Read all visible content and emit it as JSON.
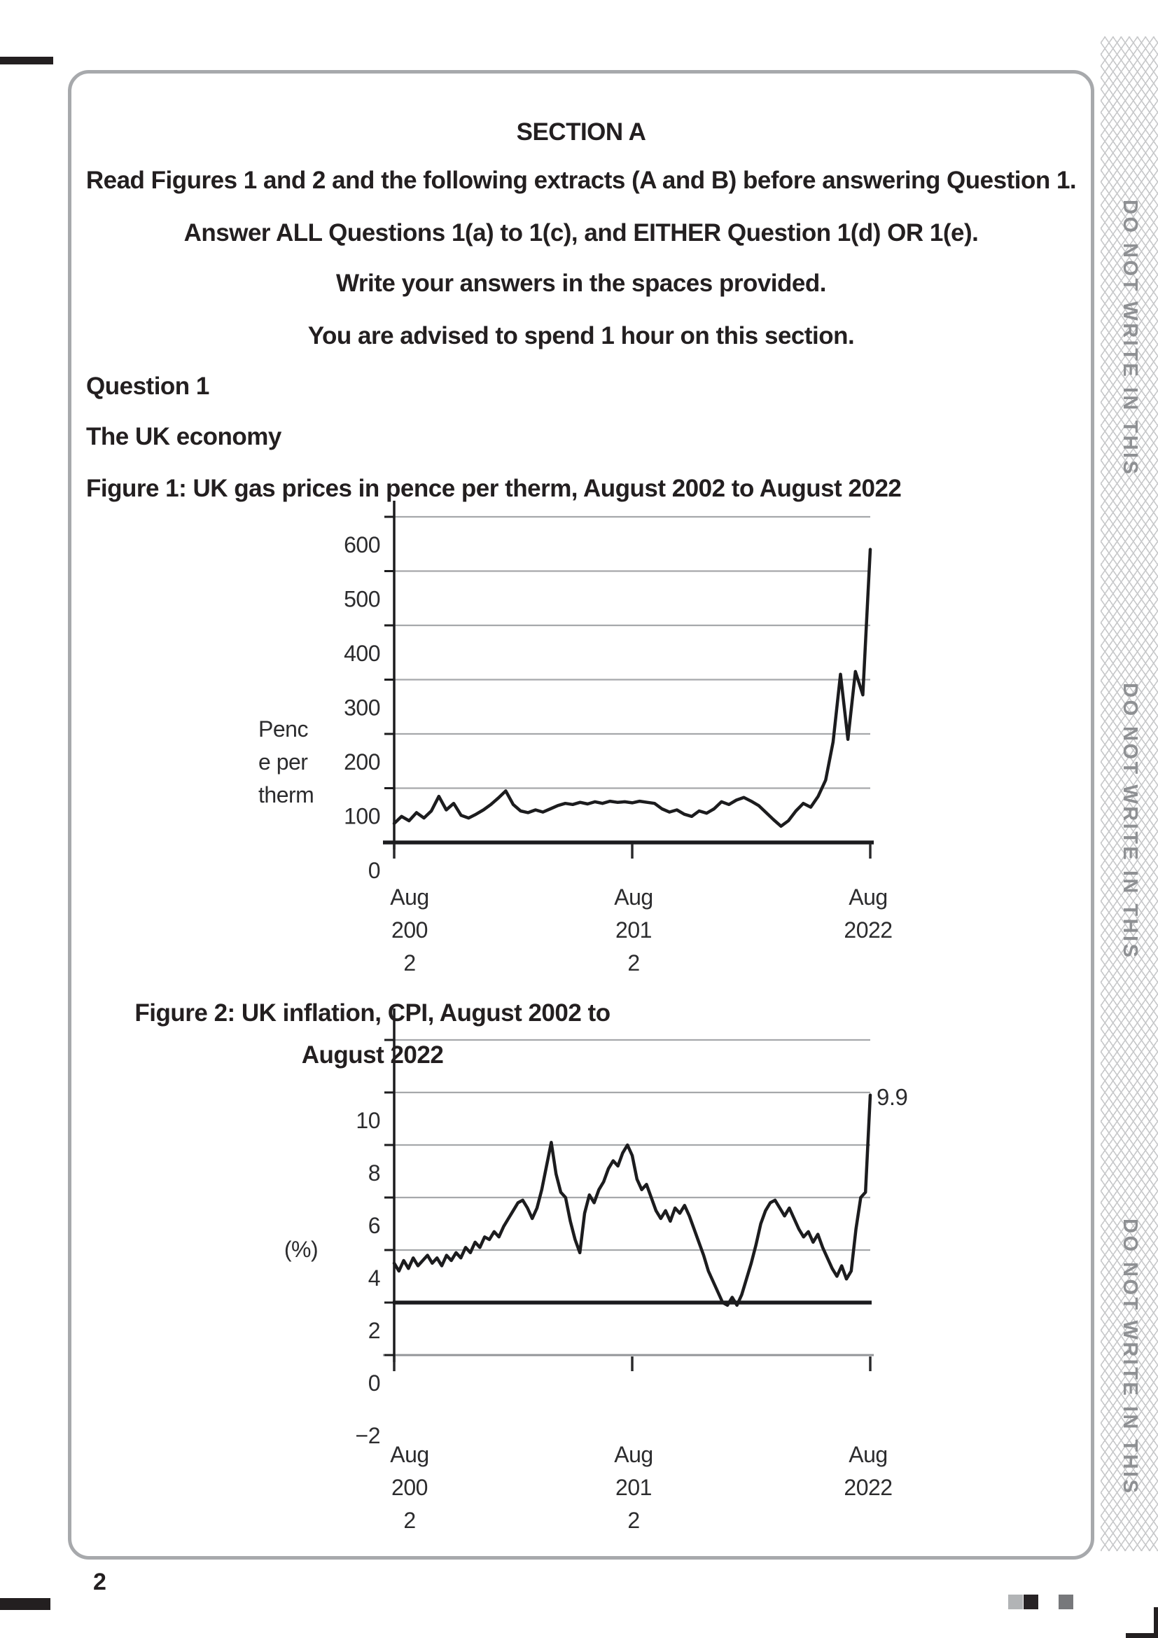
{
  "page": {
    "number": "2",
    "section_heading": "SECTION A",
    "instructions": [
      "Read Figures 1 and 2 and the following extracts (A and B) before answering Question 1.",
      "Answer ALL Questions 1(a) to 1(c), and EITHER Question 1(d) OR 1(e).",
      "Write your answers in the spaces provided.",
      "You are advised to spend 1 hour on this section."
    ],
    "question_label": "Question 1",
    "question_topic": "The UK economy",
    "margin_text": "DO NOT WRITE IN THIS"
  },
  "figure1": {
    "caption": "Figure 1: UK gas prices in pence per therm, August 2002 to August 2022"
  },
  "figure2": {
    "caption_line1": "Figure 2: UK inflation, CPI, August 2002 to",
    "caption_line2": "August 2022"
  },
  "chart_data": [
    {
      "type": "line",
      "title": "Figure 1: UK gas prices in pence per therm, August 2002 to August 2022",
      "ylabel": "Pence per therm",
      "ylabel_lines": [
        "Penc",
        "e per",
        "therm"
      ],
      "xlabel": "",
      "x_range": [
        "Aug 2002",
        "Aug 2022"
      ],
      "x_tick_positions": [
        0,
        0.5,
        1
      ],
      "x_tick_lines": [
        [
          "Aug",
          "200",
          "2"
        ],
        [
          "Aug",
          "201",
          "2"
        ],
        [
          "Aug",
          "2022"
        ]
      ],
      "y_ticks": [
        600,
        500,
        400,
        300,
        200,
        100,
        0
      ],
      "y_tick_labels": [
        "600",
        "500",
        "400",
        "300",
        "200",
        "100",
        "0"
      ],
      "gridline_values": [
        600,
        500,
        400,
        300,
        200,
        100
      ],
      "ylim": [
        0,
        650
      ],
      "grid": true,
      "legend": false,
      "series": [
        {
          "name": "UK gas price (pence per therm)",
          "values": [
            35,
            48,
            40,
            55,
            45,
            58,
            85,
            60,
            72,
            50,
            45,
            52,
            60,
            70,
            82,
            95,
            70,
            58,
            55,
            60,
            56,
            62,
            68,
            72,
            70,
            74,
            71,
            75,
            72,
            76,
            74,
            75,
            73,
            76,
            74,
            72,
            62,
            56,
            60,
            52,
            48,
            58,
            54,
            62,
            75,
            70,
            78,
            83,
            76,
            68,
            55,
            42,
            30,
            40,
            58,
            72,
            65,
            85,
            115,
            185,
            310,
            190,
            315,
            272,
            540
          ]
        }
      ]
    },
    {
      "type": "line",
      "title": "Figure 2: UK inflation, CPI, August 2002 to August 2022",
      "ylabel": "(%)",
      "ylabel_lines": [
        "(%)"
      ],
      "xlabel": "",
      "x_range": [
        "Aug 2002",
        "Aug 2022"
      ],
      "x_tick_positions": [
        0,
        0.5,
        1
      ],
      "x_tick_lines": [
        [
          "Aug",
          "200",
          "2"
        ],
        [
          "Aug",
          "201",
          "2"
        ],
        [
          "Aug",
          "2022"
        ]
      ],
      "y_ticks": [
        10,
        8,
        6,
        4,
        2,
        0,
        -2
      ],
      "y_tick_labels": [
        "10",
        "8",
        "6",
        "4",
        "2",
        "0",
        "−2"
      ],
      "gridline_values": [
        12,
        10,
        8,
        6,
        4
      ],
      "target_line_value": 2,
      "zero_axis_value": 0,
      "ylim": [
        -2.6,
        12.5
      ],
      "grid": true,
      "legend": false,
      "annotation": {
        "text": "9.9",
        "value": 9.9
      },
      "series": [
        {
          "name": "UK CPI inflation (%)",
          "values": [
            3.5,
            3.2,
            3.6,
            3.3,
            3.7,
            3.4,
            3.6,
            3.8,
            3.5,
            3.7,
            3.4,
            3.8,
            3.6,
            3.9,
            3.7,
            4.1,
            3.9,
            4.3,
            4.1,
            4.5,
            4.4,
            4.7,
            4.5,
            4.9,
            5.2,
            5.5,
            5.8,
            5.9,
            5.6,
            5.2,
            5.6,
            6.3,
            7.2,
            8.1,
            6.9,
            6.2,
            6.0,
            5.1,
            4.4,
            3.9,
            5.4,
            6.1,
            5.8,
            6.3,
            6.6,
            7.1,
            7.4,
            7.2,
            7.7,
            8.0,
            7.6,
            6.7,
            6.3,
            6.5,
            6.0,
            5.5,
            5.2,
            5.5,
            5.1,
            5.6,
            5.4,
            5.7,
            5.3,
            4.8,
            4.3,
            3.8,
            3.2,
            2.8,
            2.4,
            2.0,
            1.9,
            2.2,
            1.9,
            2.3,
            2.9,
            3.5,
            4.2,
            5.0,
            5.5,
            5.8,
            5.9,
            5.6,
            5.3,
            5.6,
            5.2,
            4.8,
            4.5,
            4.7,
            4.3,
            4.6,
            4.1,
            3.7,
            3.3,
            3.0,
            3.4,
            2.9,
            3.2,
            4.8,
            6.0,
            6.2,
            9.9
          ]
        }
      ]
    }
  ]
}
